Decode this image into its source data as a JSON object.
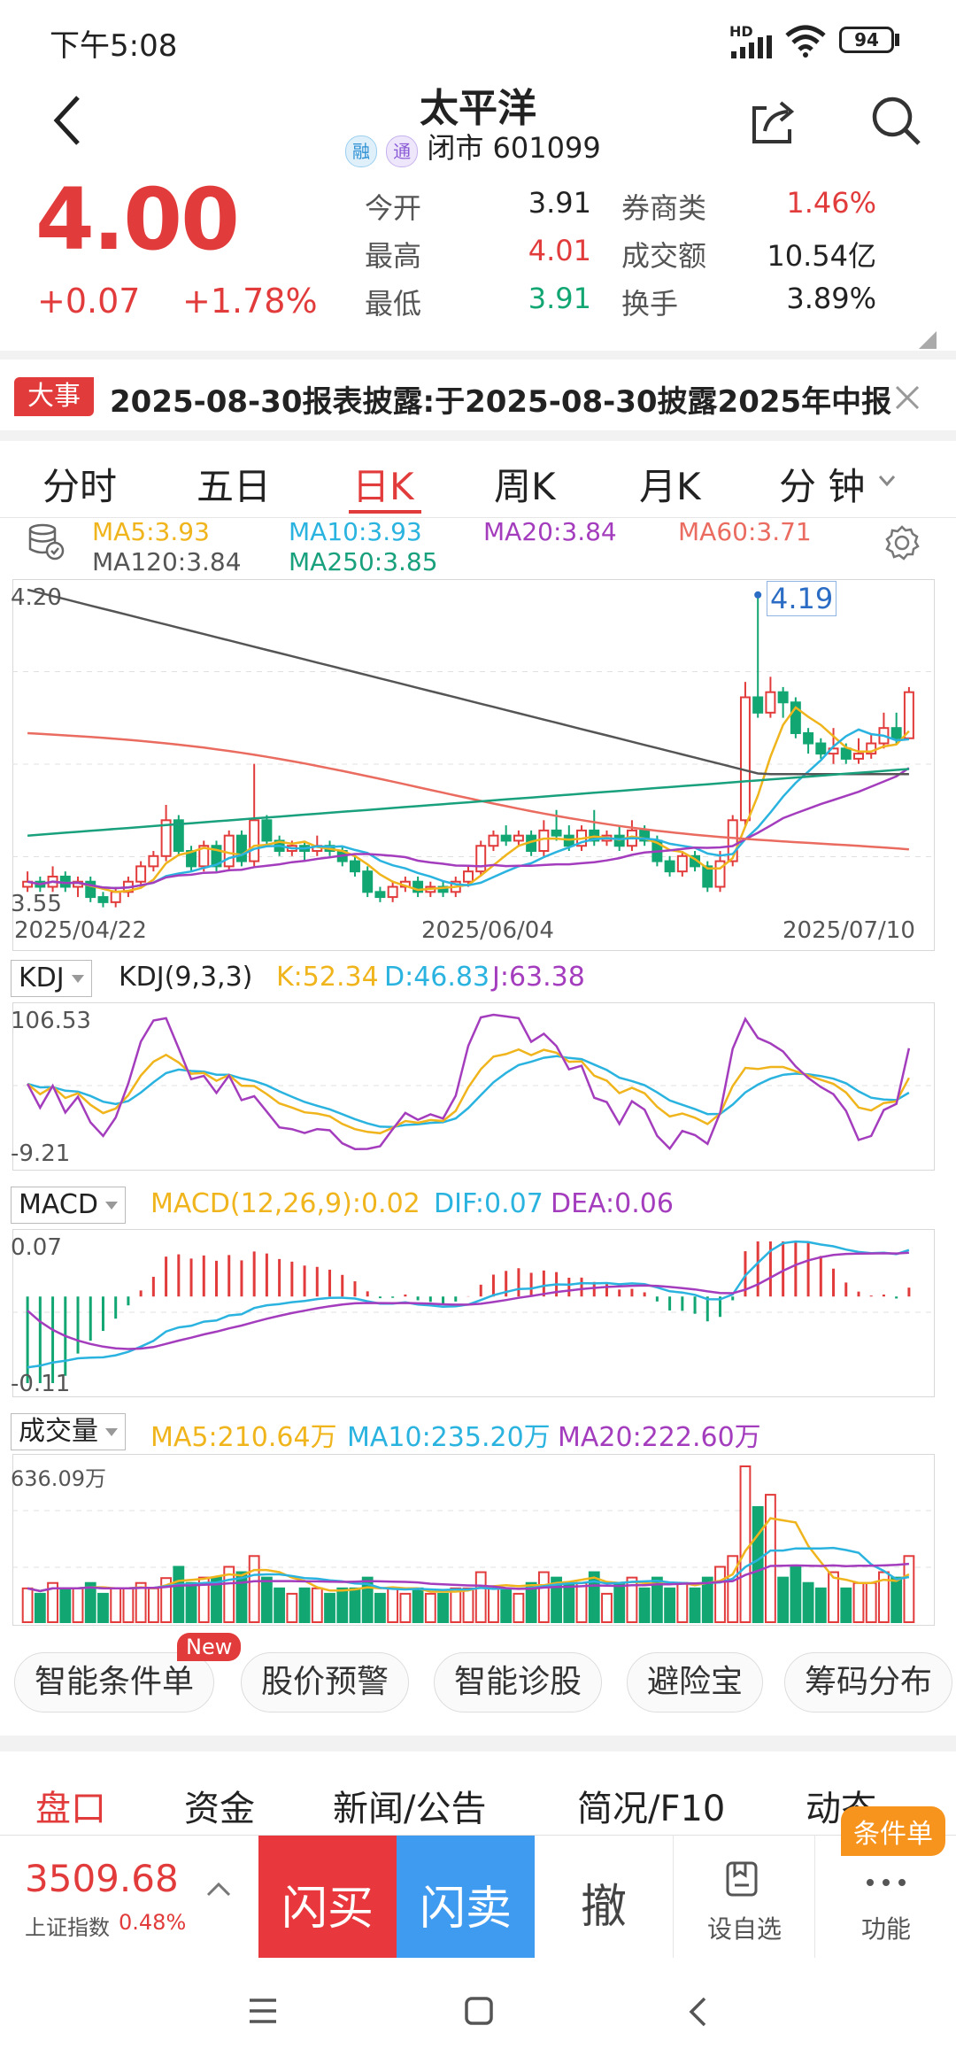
{
  "status_bar": {
    "time": "下午5:08",
    "network": "HD",
    "battery": "94"
  },
  "header": {
    "title": "太平洋",
    "badges": [
      "融",
      "通"
    ],
    "status": "闭市",
    "code": "601099"
  },
  "quote": {
    "price": "4.00",
    "change": "+0.07",
    "change_pct": "+1.78%",
    "stats": [
      {
        "label": "今开",
        "value": "3.91",
        "color": "#222222"
      },
      {
        "label": "券商类",
        "value": "1.46%",
        "color": "#e23b3b"
      },
      {
        "label": "最高",
        "value": "4.01",
        "color": "#e23b3b"
      },
      {
        "label": "成交额",
        "value": "10.54亿",
        "color": "#222222"
      },
      {
        "label": "最低",
        "value": "3.91",
        "color": "#12a673"
      },
      {
        "label": "换手",
        "value": "3.89%",
        "color": "#222222"
      }
    ]
  },
  "news": {
    "tag": "大事",
    "text": "2025-08-30报表披露:于2025-08-30披露2025年中报"
  },
  "kline_tabs": [
    "分时",
    "五日",
    "日K",
    "周K",
    "月K",
    "分 钟"
  ],
  "active_tab_index": 2,
  "ma_legend": [
    {
      "text": "MA5:3.93",
      "color": "#f0b41c"
    },
    {
      "text": "MA10:3.93",
      "color": "#2bb3e0"
    },
    {
      "text": "MA20:3.84",
      "color": "#a43dbd"
    },
    {
      "text": "MA60:3.71",
      "color": "#ea6b5f"
    },
    {
      "text": "MA120:3.84",
      "color": "#555555"
    },
    {
      "text": "MA250:3.85",
      "color": "#19a07d"
    }
  ],
  "price_chart": {
    "y_high": "4.20",
    "y_low": "3.55",
    "peak_label": "4.19",
    "dates": [
      "2025/04/22",
      "2025/06/04",
      "2025/07/10"
    ]
  },
  "kdj": {
    "selector": "KDJ",
    "params": "KDJ(9,3,3)",
    "k": "K:52.34",
    "d": "D:46.83",
    "j": "J:63.38",
    "y_high": "106.53",
    "y_low": "-9.21"
  },
  "macd": {
    "selector": "MACD",
    "params": "MACD(12,26,9):0.02",
    "dif": "DIF:0.07",
    "dea": "DEA:0.06",
    "y_high": "0.07",
    "y_low": "-0.11"
  },
  "volume": {
    "selector": "成交量",
    "ma5": "MA5:210.64万",
    "ma10": "MA10:235.20万",
    "ma20": "MA20:222.60万",
    "y_high": "636.09万"
  },
  "tools": [
    {
      "label": "智能条件单",
      "badge": "New"
    },
    {
      "label": "股价预警"
    },
    {
      "label": "智能诊股"
    },
    {
      "label": "避险宝"
    },
    {
      "label": "筹码分布"
    }
  ],
  "section_tabs": [
    "盘口",
    "资金",
    "新闻/公告",
    "简况/F10",
    "动态"
  ],
  "bottom_bar": {
    "index_value": "3509.68",
    "index_name": "上证指数",
    "index_pct": "0.48%",
    "buy": "闪买",
    "sell": "闪卖",
    "cancel": "撤",
    "watch": "设自选",
    "more": "功能",
    "badge": "条件单"
  },
  "colors": {
    "up": "#e23b3b",
    "down": "#12a673",
    "buy_bg": "#e8383d",
    "sell_bg": "#3f9bf0",
    "orange": "#f7941d"
  },
  "chart_data": {
    "type": "candlestick",
    "dates": [
      "2025/04/22",
      "2025/06/04",
      "2025/07/10"
    ],
    "ylim": [
      3.55,
      4.2
    ],
    "candles": [
      [
        3.62,
        3.63,
        3.65,
        3.61
      ],
      [
        3.63,
        3.62,
        3.64,
        3.61
      ],
      [
        3.62,
        3.64,
        3.66,
        3.61
      ],
      [
        3.64,
        3.62,
        3.65,
        3.61
      ],
      [
        3.62,
        3.63,
        3.64,
        3.6
      ],
      [
        3.63,
        3.6,
        3.64,
        3.59
      ],
      [
        3.6,
        3.59,
        3.61,
        3.58
      ],
      [
        3.59,
        3.61,
        3.62,
        3.58
      ],
      [
        3.61,
        3.63,
        3.64,
        3.6
      ],
      [
        3.63,
        3.66,
        3.67,
        3.62
      ],
      [
        3.66,
        3.68,
        3.69,
        3.65
      ],
      [
        3.68,
        3.75,
        3.78,
        3.67
      ],
      [
        3.75,
        3.69,
        3.76,
        3.68
      ],
      [
        3.69,
        3.66,
        3.7,
        3.65
      ],
      [
        3.66,
        3.7,
        3.71,
        3.65
      ],
      [
        3.7,
        3.66,
        3.71,
        3.65
      ],
      [
        3.66,
        3.72,
        3.73,
        3.65
      ],
      [
        3.72,
        3.67,
        3.73,
        3.66
      ],
      [
        3.67,
        3.75,
        3.86,
        3.66
      ],
      [
        3.75,
        3.71,
        3.76,
        3.7
      ],
      [
        3.71,
        3.69,
        3.72,
        3.68
      ],
      [
        3.69,
        3.7,
        3.71,
        3.68
      ],
      [
        3.7,
        3.69,
        3.71,
        3.67
      ],
      [
        3.69,
        3.7,
        3.72,
        3.68
      ],
      [
        3.7,
        3.69,
        3.71,
        3.68
      ],
      [
        3.69,
        3.67,
        3.7,
        3.66
      ],
      [
        3.67,
        3.65,
        3.68,
        3.64
      ],
      [
        3.65,
        3.61,
        3.66,
        3.6
      ],
      [
        3.61,
        3.6,
        3.62,
        3.59
      ],
      [
        3.6,
        3.62,
        3.63,
        3.59
      ],
      [
        3.62,
        3.63,
        3.64,
        3.61
      ],
      [
        3.63,
        3.61,
        3.64,
        3.6
      ],
      [
        3.61,
        3.62,
        3.63,
        3.6
      ],
      [
        3.62,
        3.61,
        3.63,
        3.6
      ],
      [
        3.61,
        3.63,
        3.64,
        3.6
      ],
      [
        3.63,
        3.65,
        3.66,
        3.62
      ],
      [
        3.65,
        3.7,
        3.71,
        3.64
      ],
      [
        3.7,
        3.72,
        3.73,
        3.69
      ],
      [
        3.72,
        3.71,
        3.74,
        3.7
      ],
      [
        3.71,
        3.72,
        3.73,
        3.7
      ],
      [
        3.72,
        3.69,
        3.73,
        3.68
      ],
      [
        3.69,
        3.73,
        3.75,
        3.68
      ],
      [
        3.73,
        3.72,
        3.77,
        3.71
      ],
      [
        3.72,
        3.7,
        3.74,
        3.69
      ],
      [
        3.7,
        3.73,
        3.74,
        3.69
      ],
      [
        3.73,
        3.71,
        3.77,
        3.7
      ],
      [
        3.71,
        3.72,
        3.73,
        3.7
      ],
      [
        3.72,
        3.7,
        3.74,
        3.69
      ],
      [
        3.7,
        3.73,
        3.75,
        3.69
      ],
      [
        3.73,
        3.71,
        3.74,
        3.7
      ],
      [
        3.71,
        3.67,
        3.72,
        3.66
      ],
      [
        3.67,
        3.65,
        3.68,
        3.64
      ],
      [
        3.65,
        3.68,
        3.69,
        3.64
      ],
      [
        3.68,
        3.66,
        3.69,
        3.65
      ],
      [
        3.66,
        3.62,
        3.67,
        3.61
      ],
      [
        3.62,
        3.67,
        3.69,
        3.61
      ],
      [
        3.67,
        3.75,
        3.76,
        3.66
      ],
      [
        3.75,
        3.99,
        4.02,
        3.74
      ],
      [
        3.99,
        3.96,
        4.19,
        3.95
      ],
      [
        3.96,
        4.0,
        4.03,
        3.95
      ],
      [
        4.0,
        3.98,
        4.01,
        3.95
      ],
      [
        3.98,
        3.92,
        3.99,
        3.91
      ],
      [
        3.92,
        3.9,
        3.93,
        3.88
      ],
      [
        3.9,
        3.88,
        3.91,
        3.87
      ],
      [
        3.88,
        3.89,
        3.93,
        3.86
      ],
      [
        3.89,
        3.87,
        3.9,
        3.86
      ],
      [
        3.87,
        3.88,
        3.91,
        3.86
      ],
      [
        3.88,
        3.9,
        3.92,
        3.87
      ],
      [
        3.9,
        3.93,
        3.96,
        3.89
      ],
      [
        3.93,
        3.91,
        3.96,
        3.9
      ],
      [
        3.91,
        4.0,
        4.01,
        3.91
      ]
    ]
  }
}
